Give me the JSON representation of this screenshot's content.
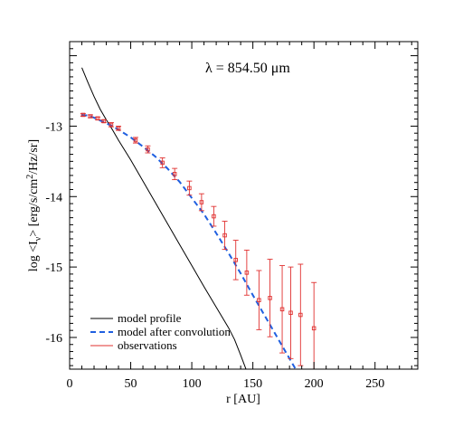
{
  "chart_data": {
    "type": "line",
    "annotation": "λ = 854.50 μm",
    "xlabel": "r [AU]",
    "ylabel": "log <I_ν> [erg/s/cm²/Hz/sr]",
    "ylabel_parts": {
      "lead": "log <I",
      "sub": "ν",
      "mid": "> [erg/s/cm",
      "sup": "2",
      "tail": "/Hz/sr]"
    },
    "xlim": [
      0,
      285
    ],
    "ylim": [
      -16.45,
      -11.8
    ],
    "x_ticks": [
      0,
      50,
      100,
      150,
      200,
      250
    ],
    "x_tick_labels": [
      "0",
      "50",
      "100",
      "150",
      "200",
      "250"
    ],
    "y_ticks": [
      -13,
      -14,
      -15,
      -16
    ],
    "y_tick_labels": [
      "-13",
      "-14",
      "-15",
      "-16"
    ],
    "legend_position": "bottom-left",
    "colors": {
      "model_profile": "#000000",
      "convolved": "#1f5fe0",
      "observations": "#e0302f"
    },
    "series": [
      {
        "name": "model profile",
        "style": "solid",
        "x": [
          10,
          15,
          20,
          25,
          30,
          35,
          40,
          45,
          50,
          60,
          70,
          80,
          90,
          100,
          110,
          120,
          130,
          135,
          140,
          145
        ],
        "y": [
          -12.17,
          -12.38,
          -12.58,
          -12.76,
          -12.91,
          -13.05,
          -13.2,
          -13.34,
          -13.48,
          -13.78,
          -14.08,
          -14.38,
          -14.68,
          -14.98,
          -15.28,
          -15.57,
          -15.86,
          -16.03,
          -16.25,
          -16.48
        ]
      },
      {
        "name": "model after convolution",
        "style": "dashed",
        "x": [
          10,
          15,
          20,
          25,
          30,
          35,
          40,
          50,
          60,
          70,
          80,
          90,
          100,
          110,
          120,
          130,
          140,
          150,
          160,
          170,
          180,
          185
        ],
        "y": [
          -12.84,
          -12.85,
          -12.88,
          -12.92,
          -12.96,
          -13.0,
          -13.05,
          -13.16,
          -13.29,
          -13.43,
          -13.6,
          -13.79,
          -14.02,
          -14.25,
          -14.52,
          -14.8,
          -15.09,
          -15.4,
          -15.7,
          -16.0,
          -16.3,
          -16.45
        ]
      },
      {
        "name": "observations",
        "style": "errorbar",
        "points": [
          {
            "x": 11,
            "y": -12.84,
            "err": 0.02
          },
          {
            "x": 17,
            "y": -12.86,
            "err": 0.02
          },
          {
            "x": 23,
            "y": -12.89,
            "err": 0.02
          },
          {
            "x": 28,
            "y": -12.93,
            "err": 0.02
          },
          {
            "x": 34,
            "y": -12.98,
            "err": 0.03
          },
          {
            "x": 40,
            "y": -13.03,
            "err": 0.03
          },
          {
            "x": 54,
            "y": -13.2,
            "err": 0.04
          },
          {
            "x": 64,
            "y": -13.33,
            "err": 0.05
          },
          {
            "x": 76,
            "y": -13.52,
            "err": 0.07
          },
          {
            "x": 86,
            "y": -13.68,
            "err": 0.08
          },
          {
            "x": 98,
            "y": -13.88,
            "err": 0.1
          },
          {
            "x": 108,
            "y": -14.08,
            "err": 0.12
          },
          {
            "x": 118,
            "y": -14.28,
            "err": 0.14
          },
          {
            "x": 127,
            "y": -14.55,
            "err": 0.2
          },
          {
            "x": 136,
            "y": -14.9,
            "err": 0.28
          },
          {
            "x": 145,
            "y": -15.08,
            "err": 0.32
          },
          {
            "x": 155,
            "y": -15.47,
            "err": 0.42
          },
          {
            "x": 164,
            "y": -15.44,
            "err": 0.55
          },
          {
            "x": 174,
            "y": -15.6,
            "err": 0.62
          },
          {
            "x": 181,
            "y": -15.65,
            "err": 0.65
          },
          {
            "x": 189,
            "y": -15.68,
            "err": 0.72
          },
          {
            "x": 200,
            "y": -15.87,
            "err": 0.65
          }
        ]
      }
    ]
  }
}
